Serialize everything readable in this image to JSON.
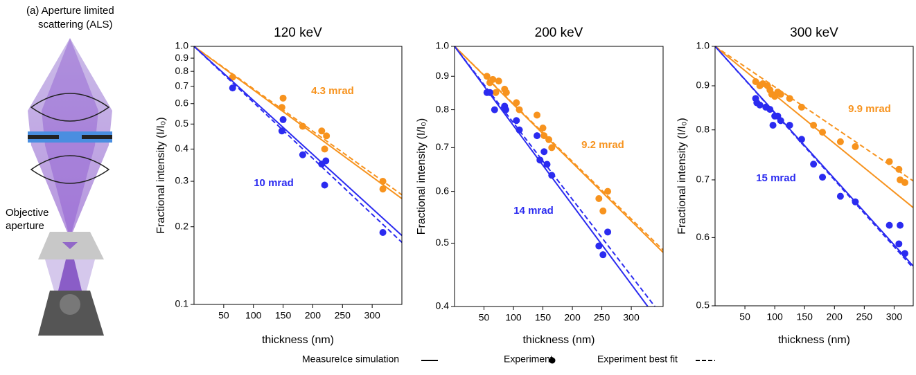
{
  "diagram": {
    "caption": [
      "(a) Aperture limited",
      "scattering (ALS)"
    ],
    "aperture_label": [
      "Objective",
      "aperture"
    ]
  },
  "chart_data": [
    {
      "type": "scatter",
      "title": "120 keV",
      "xlabel": "thickness (nm)",
      "ylabel": "Fractional intensity (I/I₀)",
      "xlim": [
        0,
        350
      ],
      "ylim": [
        0.1,
        1
      ],
      "yscale": "log",
      "xticks": [
        50,
        100,
        150,
        200,
        250,
        300
      ],
      "yticks": [
        0.1,
        0.2,
        0.3,
        0.4,
        0.5,
        0.6,
        0.7,
        0.8,
        0.9,
        {
          "value": 1,
          "label": "1.0"
        }
      ],
      "series": [
        {
          "name": "4.3 mrad",
          "color": "#f7931e",
          "x": [
            65,
            148,
            150,
            183,
            215,
            220,
            223,
            318,
            318
          ],
          "values": [
            0.76,
            0.58,
            0.63,
            0.49,
            0.47,
            0.4,
            0.45,
            0.3,
            0.28
          ],
          "simulation": {
            "x": [
              0,
              350
            ],
            "values": [
              1,
              0.257
            ]
          },
          "fit": {
            "x": [
              0,
              350
            ],
            "values": [
              1,
              0.266
            ]
          }
        },
        {
          "name": "10 mrad",
          "color": "#2b2bf0",
          "x": [
            65,
            148,
            150,
            183,
            215,
            220,
            222,
            318
          ],
          "values": [
            0.69,
            0.47,
            0.52,
            0.38,
            0.35,
            0.29,
            0.36,
            0.19
          ],
          "simulation": {
            "x": [
              0,
              350
            ],
            "values": [
              1,
              0.185
            ]
          },
          "fit": {
            "x": [
              0,
              350
            ],
            "values": [
              1,
              0.174
            ]
          }
        }
      ]
    },
    {
      "type": "scatter",
      "title": "200 keV",
      "xlabel": "thickness (nm)",
      "ylabel": "Fractional intensity (I/I₀)",
      "xlim": [
        0,
        354
      ],
      "ylim": [
        0.4,
        1
      ],
      "yscale": "log",
      "xticks": [
        50,
        100,
        150,
        200,
        250,
        300
      ],
      "yticks": [
        0.4,
        0.5,
        0.6,
        0.7,
        0.8,
        0.9,
        {
          "value": 1,
          "label": "1.0"
        }
      ],
      "series": [
        {
          "name": "9.2 mrad",
          "color": "#f7931e",
          "x": [
            55,
            60,
            65,
            70,
            75,
            85,
            88,
            105,
            110,
            140,
            150,
            152,
            160,
            165,
            245,
            252,
            260
          ],
          "values": [
            0.9,
            0.88,
            0.89,
            0.85,
            0.885,
            0.86,
            0.85,
            0.82,
            0.8,
            0.785,
            0.75,
            0.73,
            0.72,
            0.7,
            0.585,
            0.56,
            0.6
          ],
          "simulation": {
            "x": [
              0,
              354
            ],
            "values": [
              1,
              0.484
            ]
          },
          "fit": {
            "x": [
              0,
              354
            ],
            "values": [
              1,
              0.488
            ]
          }
        },
        {
          "name": "14 mrad",
          "color": "#2b2bf0",
          "x": [
            55,
            60,
            68,
            85,
            87,
            105,
            110,
            140,
            145,
            152,
            157,
            165,
            245,
            252,
            260
          ],
          "values": [
            0.85,
            0.85,
            0.8,
            0.81,
            0.8,
            0.77,
            0.745,
            0.73,
            0.67,
            0.69,
            0.66,
            0.635,
            0.495,
            0.48,
            0.52
          ],
          "simulation": {
            "x": [
              0,
              328
            ],
            "values": [
              1,
              0.4
            ]
          },
          "fit": {
            "x": [
              0,
              340
            ],
            "values": [
              1,
              0.4
            ]
          }
        }
      ]
    },
    {
      "type": "scatter",
      "title": "300 keV",
      "xlabel": "thickness (nm)",
      "ylabel": "Fractional intensity (I/I₀)",
      "xlim": [
        0,
        332
      ],
      "ylim": [
        0.5,
        1
      ],
      "yscale": "log",
      "xticks": [
        50,
        100,
        150,
        200,
        250,
        300
      ],
      "yticks": [
        0.5,
        0.6,
        0.7,
        0.8,
        0.9,
        {
          "value": 1,
          "label": "1.0"
        }
      ],
      "series": [
        {
          "name": "9.9 mrad",
          "color": "#f7931e",
          "x": [
            68,
            75,
            80,
            88,
            92,
            95,
            100,
            105,
            110,
            125,
            145,
            165,
            180,
            210,
            235,
            292,
            308,
            310,
            318
          ],
          "values": [
            0.91,
            0.9,
            0.905,
            0.9,
            0.89,
            0.88,
            0.875,
            0.885,
            0.88,
            0.87,
            0.85,
            0.81,
            0.795,
            0.775,
            0.765,
            0.735,
            0.72,
            0.7,
            0.695
          ],
          "simulation": {
            "x": [
              0,
              332
            ],
            "values": [
              1,
              0.65
            ]
          },
          "fit": {
            "x": [
              0,
              332
            ],
            "values": [
              1,
              0.698
            ]
          }
        },
        {
          "name": "15 mrad",
          "color": "#2b2bf0",
          "x": [
            68,
            70,
            75,
            85,
            92,
            97,
            100,
            105,
            110,
            125,
            145,
            165,
            180,
            210,
            235,
            292,
            308,
            310,
            318
          ],
          "values": [
            0.87,
            0.86,
            0.855,
            0.85,
            0.845,
            0.81,
            0.83,
            0.83,
            0.82,
            0.81,
            0.78,
            0.73,
            0.705,
            0.67,
            0.66,
            0.62,
            0.59,
            0.62,
            0.575
          ],
          "simulation": {
            "x": [
              0,
              332
            ],
            "values": [
              1,
              0.556
            ]
          },
          "fit": {
            "x": [
              0,
              332
            ],
            "values": [
              1,
              0.553
            ]
          }
        }
      ]
    }
  ],
  "legend": {
    "items": [
      "MeasureIce simulation",
      "Experiment",
      "Experiment best fit"
    ]
  }
}
